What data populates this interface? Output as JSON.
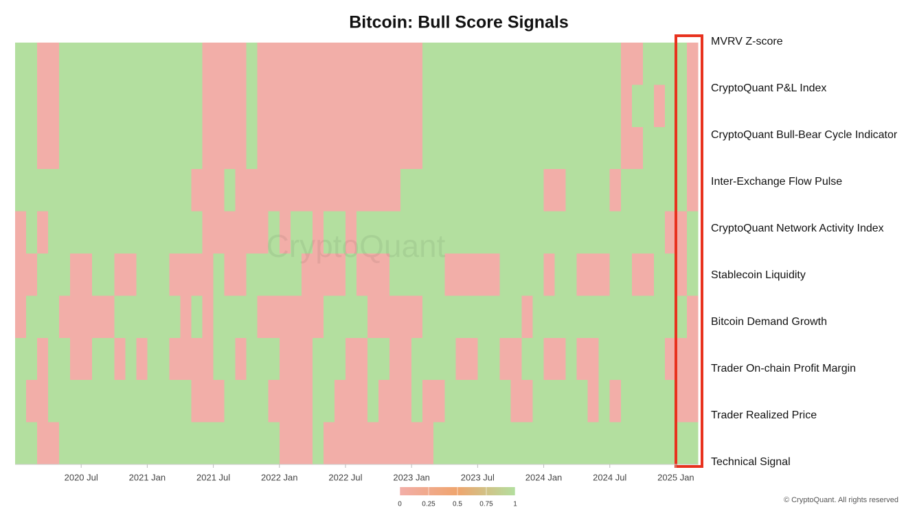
{
  "chart_data": {
    "type": "heatmap",
    "title": "Bitcoin: Bull Score Signals",
    "watermark": "CryptoQuant",
    "copyright": "© CryptoQuant. All rights reserved",
    "x": [
      "2020-01",
      "2020-02",
      "2020-03",
      "2020-04",
      "2020-05",
      "2020-06",
      "2020-07",
      "2020-08",
      "2020-09",
      "2020-10",
      "2020-11",
      "2020-12",
      "2021-01",
      "2021-02",
      "2021-03",
      "2021-04",
      "2021-05",
      "2021-06",
      "2021-07",
      "2021-08",
      "2021-09",
      "2021-10",
      "2021-11",
      "2021-12",
      "2022-01",
      "2022-02",
      "2022-03",
      "2022-04",
      "2022-05",
      "2022-06",
      "2022-07",
      "2022-08",
      "2022-09",
      "2022-10",
      "2022-11",
      "2022-12",
      "2023-01",
      "2023-02",
      "2023-03",
      "2023-04",
      "2023-05",
      "2023-06",
      "2023-07",
      "2023-08",
      "2023-09",
      "2023-10",
      "2023-11",
      "2023-12",
      "2024-01",
      "2024-02",
      "2024-03",
      "2024-04",
      "2024-05",
      "2024-06",
      "2024-07",
      "2024-08",
      "2024-09",
      "2024-10",
      "2024-11",
      "2024-12",
      "2025-01",
      "2025-02"
    ],
    "xticks": [
      {
        "value": "2020-07",
        "label": "2020 Jul"
      },
      {
        "value": "2021-01",
        "label": "2021 Jan"
      },
      {
        "value": "2021-07",
        "label": "2021 Jul"
      },
      {
        "value": "2022-01",
        "label": "2022 Jan"
      },
      {
        "value": "2022-07",
        "label": "2022 Jul"
      },
      {
        "value": "2023-01",
        "label": "2023 Jan"
      },
      {
        "value": "2023-07",
        "label": "2023 Jul"
      },
      {
        "value": "2024-01",
        "label": "2024 Jan"
      },
      {
        "value": "2024-07",
        "label": "2024 Jul"
      },
      {
        "value": "2025-01",
        "label": "2025 Jan"
      }
    ],
    "colorscale": [
      [
        0,
        "#f2aea8"
      ],
      [
        0.5,
        "#efa56e"
      ],
      [
        1,
        "#b3df9f"
      ]
    ],
    "colorbar_ticks": [
      0,
      0.25,
      0.5,
      0.75,
      1
    ],
    "series": [
      {
        "name": "MVRV Z-score",
        "values": [
          1,
          1,
          0,
          0,
          1,
          1,
          1,
          1,
          1,
          1,
          1,
          1,
          1,
          1,
          1,
          1,
          1,
          0,
          0,
          0,
          0,
          1,
          0,
          0,
          0,
          0,
          0,
          0,
          0,
          0,
          0,
          0,
          0,
          0,
          0,
          0,
          0,
          1,
          1,
          1,
          1,
          1,
          1,
          1,
          1,
          1,
          1,
          1,
          1,
          1,
          1,
          1,
          1,
          1,
          1,
          0,
          0,
          1,
          1,
          1,
          1,
          0
        ]
      },
      {
        "name": "CryptoQuant P&L Index",
        "values": [
          1,
          1,
          0,
          0,
          1,
          1,
          1,
          1,
          1,
          1,
          1,
          1,
          1,
          1,
          1,
          1,
          1,
          0,
          0,
          0,
          0,
          1,
          0,
          0,
          0,
          0,
          0,
          0,
          0,
          0,
          0,
          0,
          0,
          0,
          0,
          0,
          0,
          1,
          1,
          1,
          1,
          1,
          1,
          1,
          1,
          1,
          1,
          1,
          1,
          1,
          1,
          1,
          1,
          1,
          1,
          0,
          1,
          1,
          0,
          1,
          1,
          0
        ]
      },
      {
        "name": "CryptoQuant Bull-Bear Cycle Indicator",
        "values": [
          1,
          1,
          0,
          0,
          1,
          1,
          1,
          1,
          1,
          1,
          1,
          1,
          1,
          1,
          1,
          1,
          1,
          0,
          0,
          0,
          0,
          1,
          0,
          0,
          0,
          0,
          0,
          0,
          0,
          0,
          0,
          0,
          0,
          0,
          0,
          0,
          0,
          1,
          1,
          1,
          1,
          1,
          1,
          1,
          1,
          1,
          1,
          1,
          1,
          1,
          1,
          1,
          1,
          1,
          1,
          0,
          0,
          1,
          1,
          1,
          1,
          0
        ]
      },
      {
        "name": "Inter-Exchange Flow Pulse",
        "values": [
          1,
          1,
          1,
          1,
          1,
          1,
          1,
          1,
          1,
          1,
          1,
          1,
          1,
          1,
          1,
          1,
          0,
          0,
          0,
          1,
          0,
          0,
          0,
          0,
          0,
          0,
          0,
          0,
          0,
          0,
          0,
          0,
          0,
          0,
          0,
          1,
          1,
          1,
          1,
          1,
          1,
          1,
          1,
          1,
          1,
          1,
          1,
          1,
          0,
          0,
          1,
          1,
          1,
          1,
          0,
          1,
          1,
          1,
          1,
          1,
          1,
          0
        ]
      },
      {
        "name": "CryptoQuant Network Activity Index",
        "values": [
          0,
          1,
          0,
          1,
          1,
          1,
          1,
          1,
          1,
          1,
          1,
          1,
          1,
          1,
          1,
          1,
          1,
          0,
          0,
          0,
          0,
          0,
          0,
          1,
          0,
          1,
          1,
          0,
          1,
          1,
          0,
          1,
          1,
          1,
          1,
          1,
          1,
          1,
          1,
          1,
          1,
          1,
          1,
          1,
          1,
          1,
          1,
          1,
          1,
          1,
          1,
          1,
          1,
          1,
          1,
          1,
          1,
          1,
          1,
          0,
          0,
          1
        ]
      },
      {
        "name": "Stablecoin Liquidity",
        "values": [
          0,
          0,
          1,
          1,
          1,
          0,
          0,
          1,
          1,
          0,
          0,
          1,
          1,
          1,
          0,
          0,
          0,
          0,
          1,
          0,
          0,
          1,
          1,
          1,
          1,
          1,
          0,
          0,
          0,
          0,
          1,
          0,
          0,
          0,
          1,
          1,
          1,
          1,
          1,
          0,
          0,
          0,
          0,
          0,
          1,
          1,
          1,
          1,
          0,
          1,
          1,
          0,
          0,
          0,
          1,
          1,
          0,
          0,
          1,
          1,
          0,
          1
        ]
      },
      {
        "name": "Bitcoin Demand Growth",
        "values": [
          0,
          1,
          1,
          1,
          0,
          0,
          0,
          0,
          0,
          1,
          1,
          1,
          1,
          1,
          1,
          0,
          1,
          0,
          1,
          1,
          1,
          1,
          0,
          0,
          0,
          0,
          0,
          0,
          1,
          1,
          1,
          1,
          0,
          0,
          0,
          0,
          0,
          1,
          1,
          1,
          1,
          1,
          1,
          1,
          1,
          1,
          0,
          1,
          1,
          1,
          1,
          1,
          1,
          1,
          1,
          1,
          1,
          1,
          1,
          1,
          1,
          0
        ]
      },
      {
        "name": "Trader On-chain Profit Margin",
        "values": [
          1,
          1,
          0,
          1,
          1,
          0,
          0,
          1,
          1,
          0,
          1,
          0,
          1,
          1,
          0,
          0,
          0,
          0,
          1,
          1,
          0,
          1,
          1,
          1,
          0,
          0,
          0,
          1,
          1,
          1,
          0,
          0,
          1,
          1,
          0,
          0,
          1,
          1,
          1,
          1,
          0,
          0,
          1,
          1,
          0,
          0,
          1,
          1,
          0,
          0,
          1,
          0,
          0,
          1,
          1,
          1,
          1,
          1,
          1,
          0,
          0,
          0
        ]
      },
      {
        "name": "Trader Realized Price",
        "values": [
          1,
          0,
          0,
          1,
          1,
          1,
          1,
          1,
          1,
          1,
          1,
          1,
          1,
          1,
          1,
          1,
          0,
          0,
          0,
          1,
          1,
          1,
          1,
          0,
          0,
          0,
          0,
          1,
          1,
          0,
          0,
          0,
          1,
          0,
          0,
          0,
          1,
          0,
          0,
          1,
          1,
          1,
          1,
          1,
          1,
          0,
          0,
          1,
          1,
          1,
          1,
          1,
          0,
          1,
          0,
          1,
          1,
          1,
          1,
          1,
          0,
          0
        ]
      },
      {
        "name": "Technical Signal",
        "values": [
          1,
          1,
          0,
          0,
          1,
          1,
          1,
          1,
          1,
          1,
          1,
          1,
          1,
          1,
          1,
          1,
          1,
          1,
          1,
          1,
          1,
          1,
          1,
          1,
          0,
          0,
          0,
          1,
          0,
          0,
          0,
          0,
          0,
          0,
          0,
          0,
          0,
          0,
          1,
          1,
          1,
          1,
          1,
          1,
          1,
          1,
          1,
          1,
          1,
          1,
          1,
          1,
          1,
          1,
          1,
          1,
          1,
          1,
          1,
          1,
          1,
          1
        ]
      }
    ]
  }
}
